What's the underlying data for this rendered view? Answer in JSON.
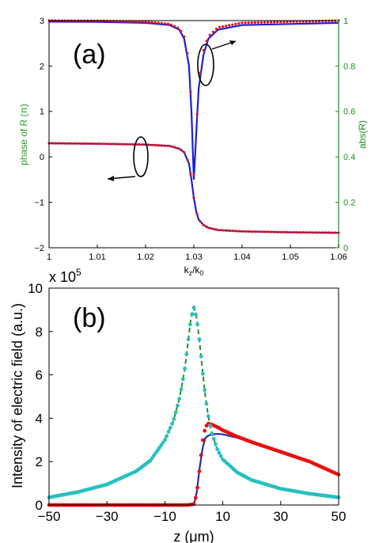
{
  "chart_data": [
    {
      "panel_label": "(a)",
      "type": "line",
      "xlabel": "k_z/k_0",
      "xlim": [
        1,
        1.06
      ],
      "x_ticks": [
        "1",
        "1.01",
        "1.02",
        "1.03",
        "1.04",
        "1.05",
        "1.06"
      ],
      "ylabel_left": "phase of R (π)",
      "ylim_left": [
        -2,
        3
      ],
      "y_ticks_left": [
        "−2",
        "−1",
        "0",
        "1",
        "2",
        "3"
      ],
      "ylabel_right": "abs(R)",
      "ylim_right": [
        0,
        1
      ],
      "y_ticks_right": [
        "0",
        "0.2",
        "0.4",
        "0.6",
        "0.8",
        "1"
      ],
      "grid": false,
      "series": [
        {
          "axis": "right",
          "color": "#1f1fd6",
          "style": "line",
          "x": [
            1.0,
            1.01,
            1.02,
            1.025,
            1.027,
            1.028,
            1.029,
            1.0295,
            1.03,
            1.0305,
            1.031,
            1.032,
            1.033,
            1.035,
            1.04,
            1.05,
            1.06
          ],
          "y": [
            0.995,
            0.994,
            0.99,
            0.98,
            0.96,
            0.92,
            0.8,
            0.6,
            0.3,
            0.5,
            0.7,
            0.85,
            0.92,
            0.96,
            0.98,
            0.985,
            0.99
          ]
        },
        {
          "axis": "right",
          "color": "#e81010",
          "style": "dotted-markers",
          "x": [
            1.0,
            1.01,
            1.02,
            1.025,
            1.027,
            1.028,
            1.029,
            1.0295,
            1.03,
            1.0305,
            1.031,
            1.032,
            1.033,
            1.035,
            1.04,
            1.05,
            1.06
          ],
          "y": [
            1.0,
            0.999,
            0.995,
            0.985,
            0.965,
            0.93,
            0.82,
            0.62,
            0.32,
            0.52,
            0.72,
            0.87,
            0.93,
            0.97,
            0.99,
            0.995,
            1.0
          ]
        },
        {
          "axis": "left",
          "color": "#1f1fd6",
          "style": "line",
          "x": [
            1.0,
            1.01,
            1.02,
            1.025,
            1.027,
            1.028,
            1.029,
            1.0295,
            1.03,
            1.0305,
            1.031,
            1.032,
            1.033,
            1.035,
            1.04,
            1.05,
            1.06
          ],
          "y": [
            0.3,
            0.29,
            0.27,
            0.24,
            0.18,
            0.1,
            -0.15,
            -0.5,
            -0.9,
            -1.2,
            -1.38,
            -1.5,
            -1.56,
            -1.61,
            -1.64,
            -1.66,
            -1.67
          ]
        },
        {
          "axis": "left",
          "color": "#e81010",
          "style": "dotted-markers",
          "x": [
            1.0,
            1.01,
            1.02,
            1.025,
            1.027,
            1.028,
            1.029,
            1.0295,
            1.03,
            1.0305,
            1.031,
            1.032,
            1.033,
            1.035,
            1.04,
            1.05,
            1.06
          ],
          "y": [
            0.3,
            0.29,
            0.27,
            0.24,
            0.18,
            0.1,
            -0.15,
            -0.5,
            -0.9,
            -1.2,
            -1.38,
            -1.5,
            -1.56,
            -1.61,
            -1.64,
            -1.66,
            -1.67
          ]
        }
      ]
    },
    {
      "panel_label": "(b)",
      "type": "line",
      "xlabel": "z (μm)",
      "xlim": [
        -50,
        50
      ],
      "x_ticks": [
        "−50",
        "−30",
        "−10",
        "10",
        "30",
        "50"
      ],
      "ylabel": "Intensity of electric field (a.u.)",
      "ylim": [
        0,
        10
      ],
      "y_ticks": [
        "0",
        "2",
        "4",
        "6",
        "8",
        "10"
      ],
      "y_multiplier": "x 10",
      "y_multiplier_exponent": "5",
      "grid": false,
      "series": [
        {
          "color": "#2a2aa6",
          "style": "line",
          "x": [
            -50,
            -10,
            -2,
            0,
            1,
            2,
            3,
            4,
            5,
            6,
            8,
            10,
            15,
            20,
            30,
            40,
            50
          ],
          "y": [
            0,
            0,
            0,
            0,
            0.6,
            1.7,
            2.6,
            3.1,
            3.2,
            3.25,
            3.28,
            3.26,
            3.1,
            2.9,
            2.5,
            2.0,
            1.4
          ]
        },
        {
          "color": "#e81010",
          "style": "markers",
          "x": [
            -50,
            -10,
            -2,
            0,
            1,
            2,
            3,
            4,
            5,
            6,
            8,
            10,
            15,
            20,
            30,
            40,
            50
          ],
          "y": [
            0,
            0,
            0,
            0.05,
            0.5,
            1.7,
            2.9,
            3.6,
            3.75,
            3.72,
            3.6,
            3.45,
            3.15,
            2.9,
            2.45,
            2.0,
            1.4
          ]
        },
        {
          "color": "#2a8a2a",
          "style": "dashed",
          "x": [
            -50,
            -40,
            -30,
            -20,
            -15,
            -10,
            -7,
            -5,
            -4,
            -3,
            -2,
            -1,
            0,
            1,
            2,
            3,
            4,
            5,
            6,
            8,
            10,
            15,
            20,
            30,
            40,
            50
          ],
          "y": [
            0.35,
            0.6,
            0.95,
            1.55,
            2.05,
            3.0,
            3.9,
            4.9,
            5.6,
            6.4,
            7.5,
            8.6,
            9.1,
            8.6,
            7.5,
            6.2,
            5.0,
            4.1,
            3.4,
            2.6,
            2.1,
            1.5,
            1.15,
            0.75,
            0.52,
            0.35
          ]
        },
        {
          "color": "#25c0c0",
          "style": "markers",
          "x": [
            -50,
            -40,
            -30,
            -20,
            -15,
            -10,
            -7,
            -5,
            -4,
            -3,
            -2,
            -1,
            0,
            1,
            2,
            3,
            4,
            5,
            6,
            8,
            10,
            15,
            20,
            30,
            40,
            50
          ],
          "y": [
            0.35,
            0.6,
            0.95,
            1.55,
            2.05,
            3.0,
            3.9,
            4.9,
            5.6,
            6.4,
            7.5,
            8.6,
            9.1,
            8.6,
            7.5,
            6.2,
            5.0,
            4.1,
            3.4,
            2.6,
            2.1,
            1.5,
            1.15,
            0.75,
            0.52,
            0.35
          ]
        }
      ]
    }
  ],
  "colors": {
    "left_axis_label": "#2a9a2a",
    "right_axis": "#1f8a1f"
  }
}
